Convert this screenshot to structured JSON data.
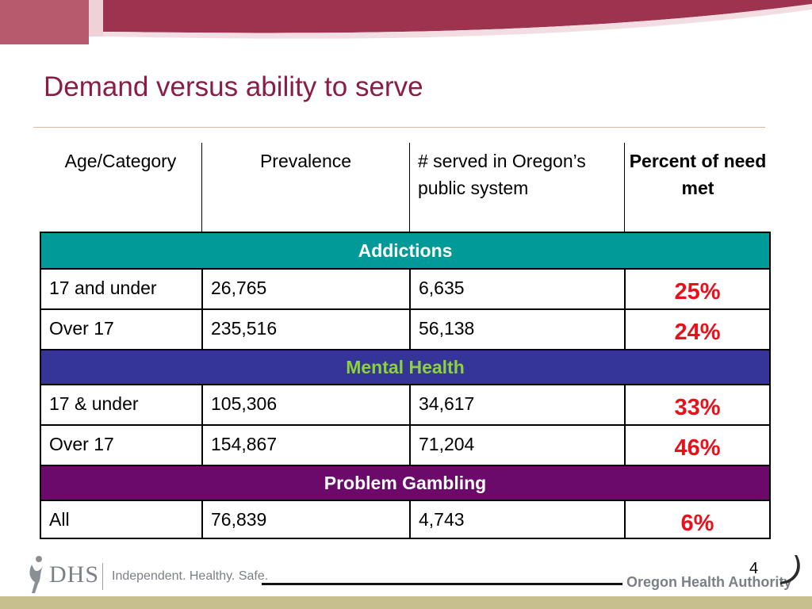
{
  "colors": {
    "banner": "#9e3350",
    "title": "#8a1c45",
    "addictions_band": "#009b98",
    "mental_health_band": "#353598",
    "mental_health_text": "#8cd23a",
    "gambling_band": "#6b0a6b",
    "percent_text": "#e8101a",
    "footer_band": "#c7c08e"
  },
  "slide": {
    "title": "Demand versus ability to serve",
    "page_number": "4"
  },
  "table": {
    "headers": {
      "age_category": "Age/Category",
      "prevalence": "Prevalence",
      "served": "# served in Oregon’s public system",
      "percent": "Percent of need met"
    },
    "sections": {
      "addictions": {
        "label": "Addictions",
        "rows": [
          {
            "category": "17 and under",
            "prevalence": "26,765",
            "served": "6,635",
            "percent": "25%"
          },
          {
            "category": "Over 17",
            "prevalence": "235,516",
            "served": "56,138",
            "percent": "24%"
          }
        ]
      },
      "mental_health": {
        "label": "Mental Health",
        "rows": [
          {
            "category": "17 & under",
            "prevalence": "105,306",
            "served": "34,617",
            "percent": "33%"
          },
          {
            "category": "Over 17",
            "prevalence": "154,867",
            "served": "71,204",
            "percent": "46%"
          }
        ]
      },
      "gambling": {
        "label": "Problem Gambling",
        "rows": [
          {
            "category": "All",
            "prevalence": "76,839",
            "served": "4,743",
            "percent": "6%"
          }
        ]
      }
    }
  },
  "footer": {
    "dhs_logo": "DHS",
    "dhs_tagline": "Independent. Healthy. Safe.",
    "oha_logo": "Oregon Health Authority",
    "icons": [
      "dhs-figure-icon",
      "oha-swoosh-icon"
    ]
  }
}
